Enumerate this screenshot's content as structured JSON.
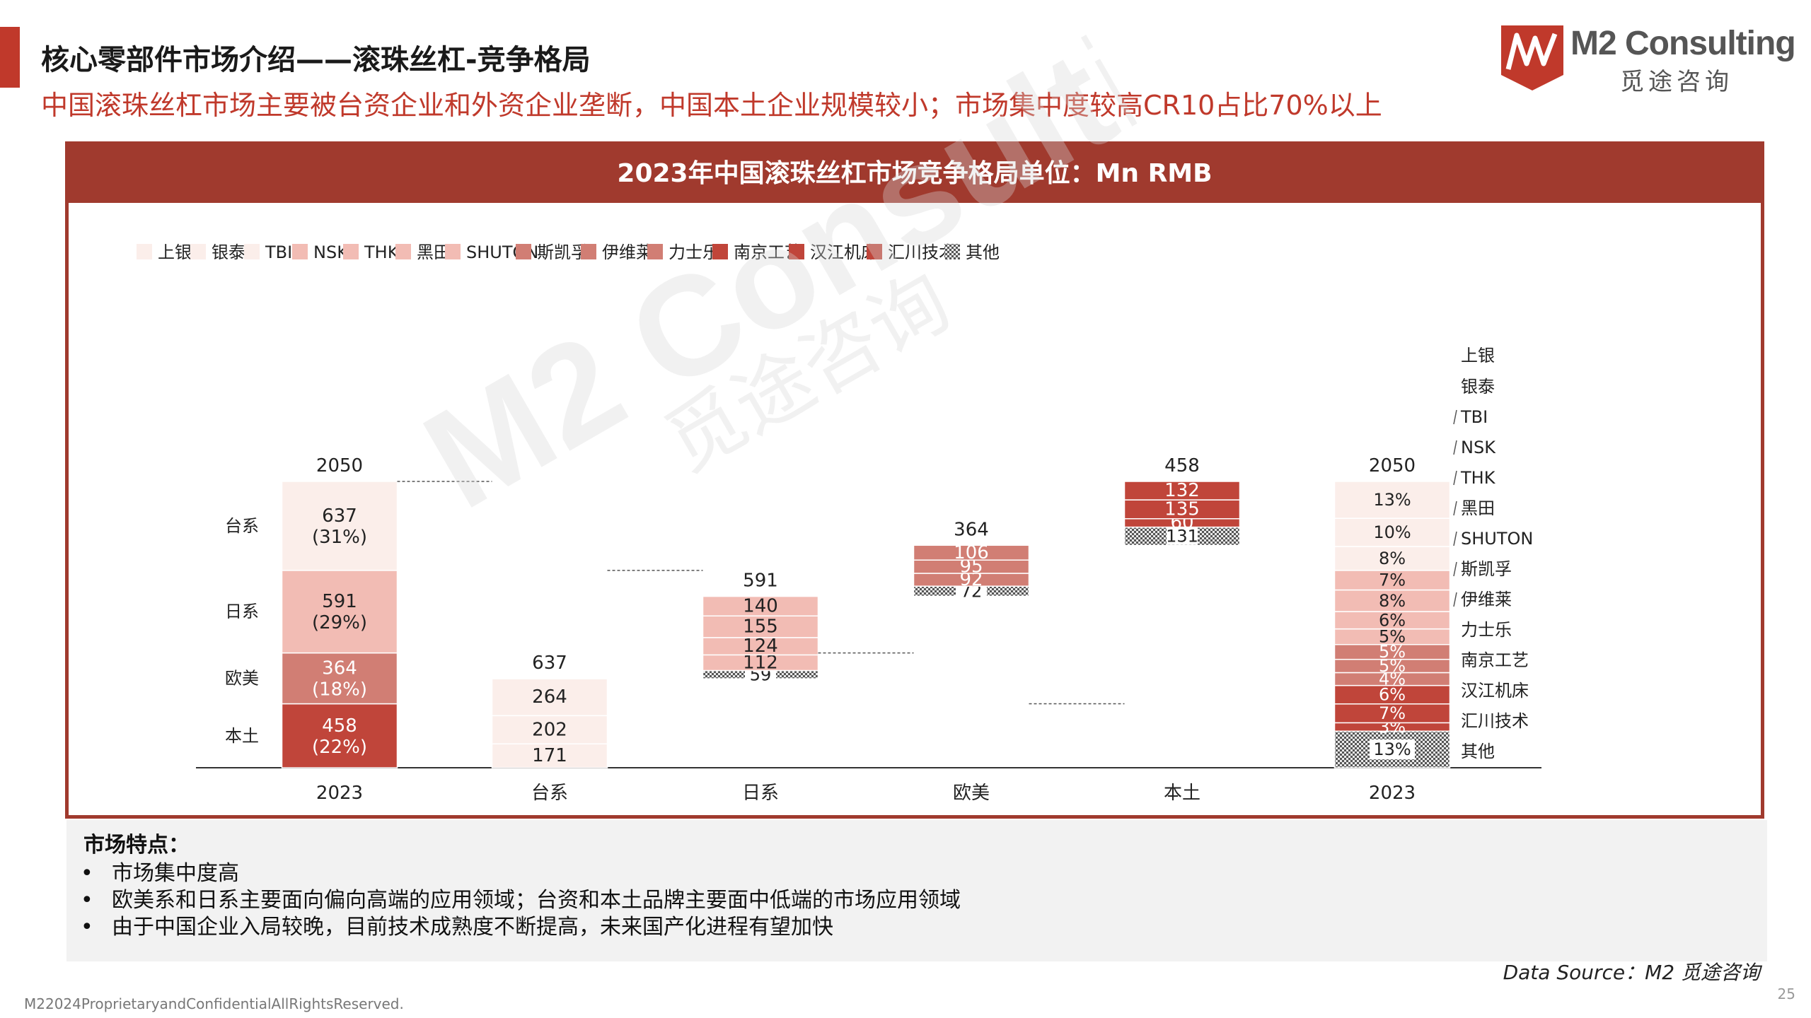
{
  "header": {
    "title": "核心零部件市场介绍——滚珠丝杠-竞争格局",
    "subtitle": "中国滚珠丝杠市场主要被台资企业和外资企业垄断，中国本土企业规模较小；市场集中度较高CR10占比70%以上"
  },
  "logo": {
    "name": "M2 Consulting",
    "cn": "觅途咨询",
    "icon": "m2-logo-icon",
    "color": "#c0392b"
  },
  "chart_title": "2023年中国滚珠丝杠市场竞争格局单位：Mn RMB",
  "chart_data": {
    "type": "bar",
    "subtype": "waterfall-with-stacked-total",
    "title": "2023年中国滚珠丝杠市场竞争格局单位：Mn RMB",
    "legend": [
      {
        "name": "上银",
        "color": "#fbeeea"
      },
      {
        "name": "银泰",
        "color": "#fbeeea"
      },
      {
        "name": "TBI",
        "color": "#fbeeea"
      },
      {
        "name": "NSK",
        "color": "#f2bcb4"
      },
      {
        "name": "THK",
        "color": "#f2bcb4"
      },
      {
        "name": "黑田",
        "color": "#f2bcb4"
      },
      {
        "name": "SHUTON",
        "color": "#f2bcb4"
      },
      {
        "name": "斯凯孚",
        "color": "#d17e74"
      },
      {
        "name": "伊维莱",
        "color": "#d17e74"
      },
      {
        "name": "力士乐",
        "color": "#d17e74"
      },
      {
        "name": "南京工艺",
        "color": "#c0453a"
      },
      {
        "name": "汉江机床",
        "color": "#c0453a"
      },
      {
        "name": "汇川技术",
        "color": "#c0453a"
      },
      {
        "name": "其他",
        "color": "pattern"
      }
    ],
    "categories": [
      "2023",
      "台系",
      "日系",
      "欧美",
      "本土",
      "2023"
    ],
    "total_start": {
      "total": 2050,
      "segments": [
        {
          "group": "本土",
          "value": 458,
          "pct": "(22%)"
        },
        {
          "group": "欧美",
          "value": 364,
          "pct": "(18%)"
        },
        {
          "group": "日系",
          "value": 591,
          "pct": "(29%)"
        },
        {
          "group": "台系",
          "value": 637,
          "pct": "(31%)"
        }
      ],
      "group_labels": [
        "台系",
        "日系",
        "欧美",
        "本土"
      ]
    },
    "waterfall": [
      {
        "category": "台系",
        "total": 637,
        "segments": [
          {
            "name": "TBI",
            "value": 171
          },
          {
            "name": "银泰",
            "value": 202
          },
          {
            "name": "上银",
            "value": 264
          }
        ]
      },
      {
        "category": "日系",
        "total": 591,
        "segments": [
          {
            "name": "其他",
            "value": 59
          },
          {
            "name": "SHUTON",
            "value": 112
          },
          {
            "name": "黑田",
            "value": 124
          },
          {
            "name": "THK",
            "value": 155
          },
          {
            "name": "NSK",
            "value": 140
          }
        ]
      },
      {
        "category": "欧美",
        "total": 364,
        "segments": [
          {
            "name": "其他",
            "value": 72
          },
          {
            "name": "力士乐",
            "value": 92
          },
          {
            "name": "伊维莱",
            "value": 95
          },
          {
            "name": "斯凯孚",
            "value": 106
          }
        ]
      },
      {
        "category": "本土",
        "total": 458,
        "segments": [
          {
            "name": "其他",
            "value": 131
          },
          {
            "name": "汇川技术",
            "value": 60
          },
          {
            "name": "汉江机床",
            "value": 135
          },
          {
            "name": "南京工艺",
            "value": 132
          }
        ]
      }
    ],
    "total_end": {
      "total": 2050,
      "segments": [
        {
          "name": "其他",
          "pct": "13%"
        },
        {
          "name": "汇川技术",
          "pct": "3%"
        },
        {
          "name": "汉江机床",
          "pct": "7%"
        },
        {
          "name": "南京工艺",
          "pct": "6%"
        },
        {
          "name": "力士乐",
          "pct": "4%"
        },
        {
          "name": "伊维莱",
          "pct": "5%"
        },
        {
          "name": "斯凯孚",
          "pct": "5%"
        },
        {
          "name": "SHUTON",
          "pct": "5%"
        },
        {
          "name": "黑田",
          "pct": "6%"
        },
        {
          "name": "THK",
          "pct": "8%"
        },
        {
          "name": "NSK",
          "pct": "7%"
        },
        {
          "name": "TBI",
          "pct": "8%"
        },
        {
          "name": "银泰",
          "pct": "10%"
        },
        {
          "name": "上银",
          "pct": "13%"
        }
      ],
      "right_labels": [
        "上银",
        "银泰",
        "TBI",
        "NSK",
        "THK",
        "黑田",
        "SHUTON",
        "斯凯孚",
        "伊维莱",
        "力士乐",
        "南京工艺",
        "汉江机床",
        "汇川技术",
        "其他"
      ]
    },
    "ylim": [
      0,
      2050
    ],
    "xlabel": "",
    "ylabel": "",
    "grid": false,
    "legend_position": "top"
  },
  "notes": {
    "title": "市场特点：",
    "items": [
      "市场集中度高",
      "欧美系和日系主要面向偏向高端的应用领域；台资和本土品牌主要面中低端的市场应用领域",
      "由于中国企业入局较晚，目前技术成熟度不断提高，未来国产化进程有望加快"
    ]
  },
  "source": "Data Source：M2 觅途咨询",
  "footer": "M22024ProprietaryandConfidentialAllRightsReserved.",
  "page_number": "25",
  "watermark": {
    "en": "M2 Consulting",
    "cn": "觅途咨询"
  }
}
